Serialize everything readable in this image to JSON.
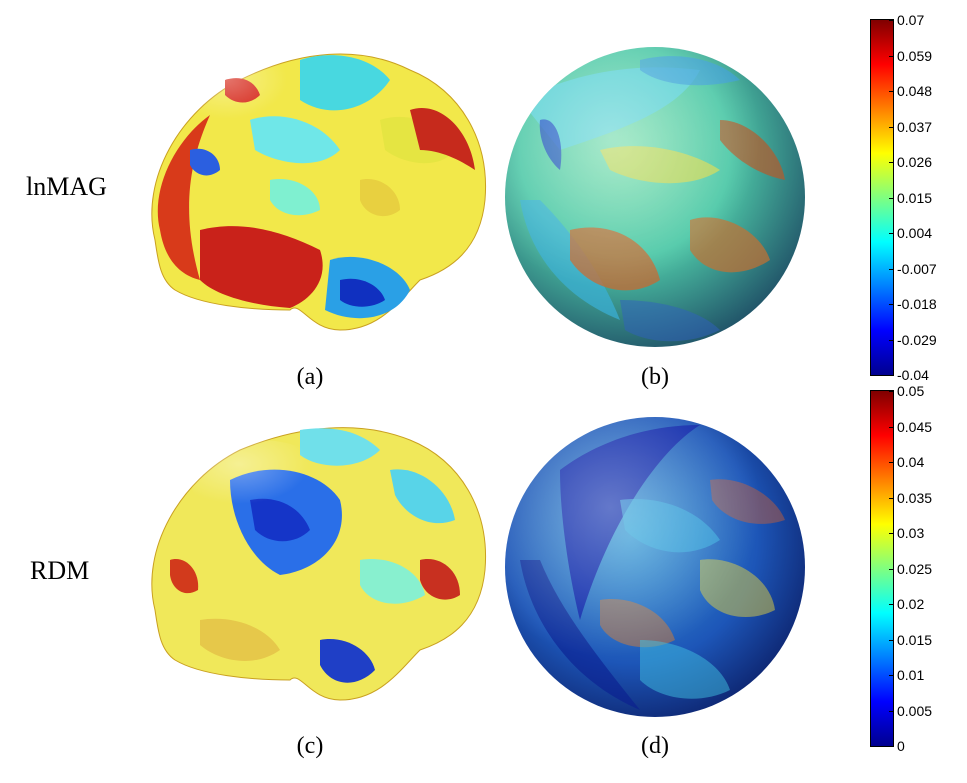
{
  "rows": [
    {
      "label": "lnMAG"
    },
    {
      "label": "RDM"
    }
  ],
  "panels": [
    {
      "label": "(a)",
      "kind": "brain"
    },
    {
      "label": "(b)",
      "kind": "sphere"
    },
    {
      "label": "(c)",
      "kind": "brain"
    },
    {
      "label": "(d)",
      "kind": "sphere"
    }
  ],
  "colorbars": [
    {
      "ticks": [
        "0.07",
        "0.059",
        "0.048",
        "0.037",
        "0.026",
        "0.015",
        "0.004",
        "-0.007",
        "-0.018",
        "-0.029",
        "-0.04"
      ],
      "range": [
        -0.04,
        0.07
      ]
    },
    {
      "ticks": [
        "0.05",
        "0.045",
        "0.04",
        "0.035",
        "0.03",
        "0.025",
        "0.02",
        "0.015",
        "0.01",
        "0.005",
        "0"
      ],
      "range": [
        0,
        0.05
      ]
    }
  ],
  "colormap": "jet",
  "colors": {
    "dark_blue": "#00008f",
    "blue": "#0000ff",
    "cyan": "#00ffff",
    "yellow": "#ffff00",
    "red": "#ff0000",
    "dark_red": "#800000"
  }
}
